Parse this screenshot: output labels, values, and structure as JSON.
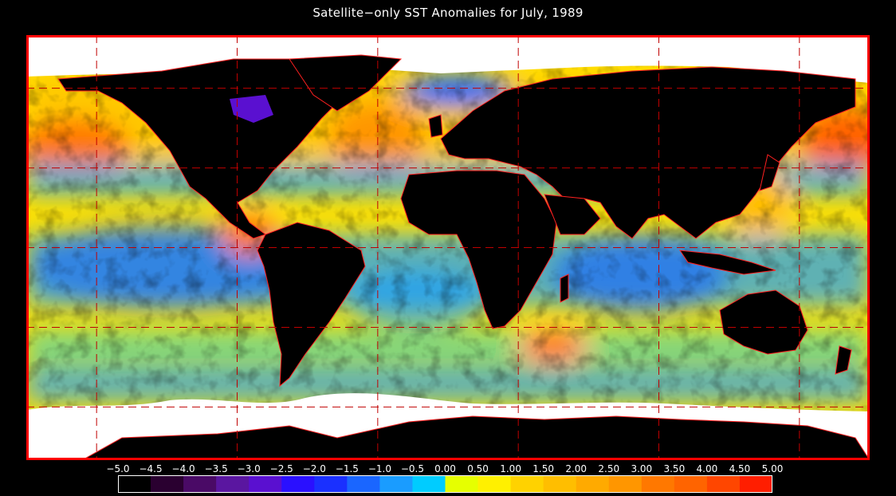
{
  "title": "Satellite−only SST Anomalies for July, 1989",
  "colors": {
    "frame": "#ff0000",
    "land": "#000000",
    "ice": "#ffffff",
    "borders": "#ff2020",
    "grid": "#c00000"
  },
  "colorbar": {
    "tick_labels": [
      "−5.0",
      "−4.5",
      "−4.0",
      "−3.5",
      "−3.0",
      "−2.5",
      "−2.0",
      "−1.5",
      "−1.0",
      "−0.5",
      "0.00",
      "0.50",
      "1.00",
      "1.50",
      "2.00",
      "2.50",
      "3.00",
      "3.50",
      "4.00",
      "4.50",
      "5.00"
    ],
    "bins": [
      {
        "min": -5.0,
        "max": -4.5,
        "color": "#000000"
      },
      {
        "min": -4.5,
        "max": -4.0,
        "color": "#2a0030"
      },
      {
        "min": -4.0,
        "max": -3.5,
        "color": "#4a0a66"
      },
      {
        "min": -3.5,
        "max": -3.0,
        "color": "#5a16a0"
      },
      {
        "min": -3.0,
        "max": -2.5,
        "color": "#5a10d0"
      },
      {
        "min": -2.5,
        "max": -2.0,
        "color": "#2a10ff"
      },
      {
        "min": -2.0,
        "max": -1.5,
        "color": "#1a30ff"
      },
      {
        "min": -1.5,
        "max": -1.0,
        "color": "#1a66ff"
      },
      {
        "min": -1.0,
        "max": -0.5,
        "color": "#1a9cff"
      },
      {
        "min": -0.5,
        "max": 0.0,
        "color": "#00ccff"
      },
      {
        "min": 0.0,
        "max": 0.5,
        "color": "#e6ff00"
      },
      {
        "min": 0.5,
        "max": 1.0,
        "color": "#fff000"
      },
      {
        "min": 1.0,
        "max": 1.5,
        "color": "#ffd200"
      },
      {
        "min": 1.5,
        "max": 2.0,
        "color": "#ffbe00"
      },
      {
        "min": 2.0,
        "max": 2.5,
        "color": "#ffaa00"
      },
      {
        "min": 2.5,
        "max": 3.0,
        "color": "#ff9600"
      },
      {
        "min": 3.0,
        "max": 3.5,
        "color": "#ff7800"
      },
      {
        "min": 3.5,
        "max": 4.0,
        "color": "#ff6400"
      },
      {
        "min": 4.0,
        "max": 4.5,
        "color": "#ff4600"
      },
      {
        "min": 4.5,
        "max": 5.0,
        "color": "#ff1e00"
      }
    ]
  },
  "map": {
    "projection": "equirectangular",
    "lon_range": [
      -180,
      180
    ],
    "lat_range": [
      -80,
      80
    ],
    "grid_lon": [
      -150,
      -90,
      -30,
      30,
      90,
      150
    ],
    "grid_lat": [
      60,
      30,
      0,
      -30,
      -60
    ]
  }
}
